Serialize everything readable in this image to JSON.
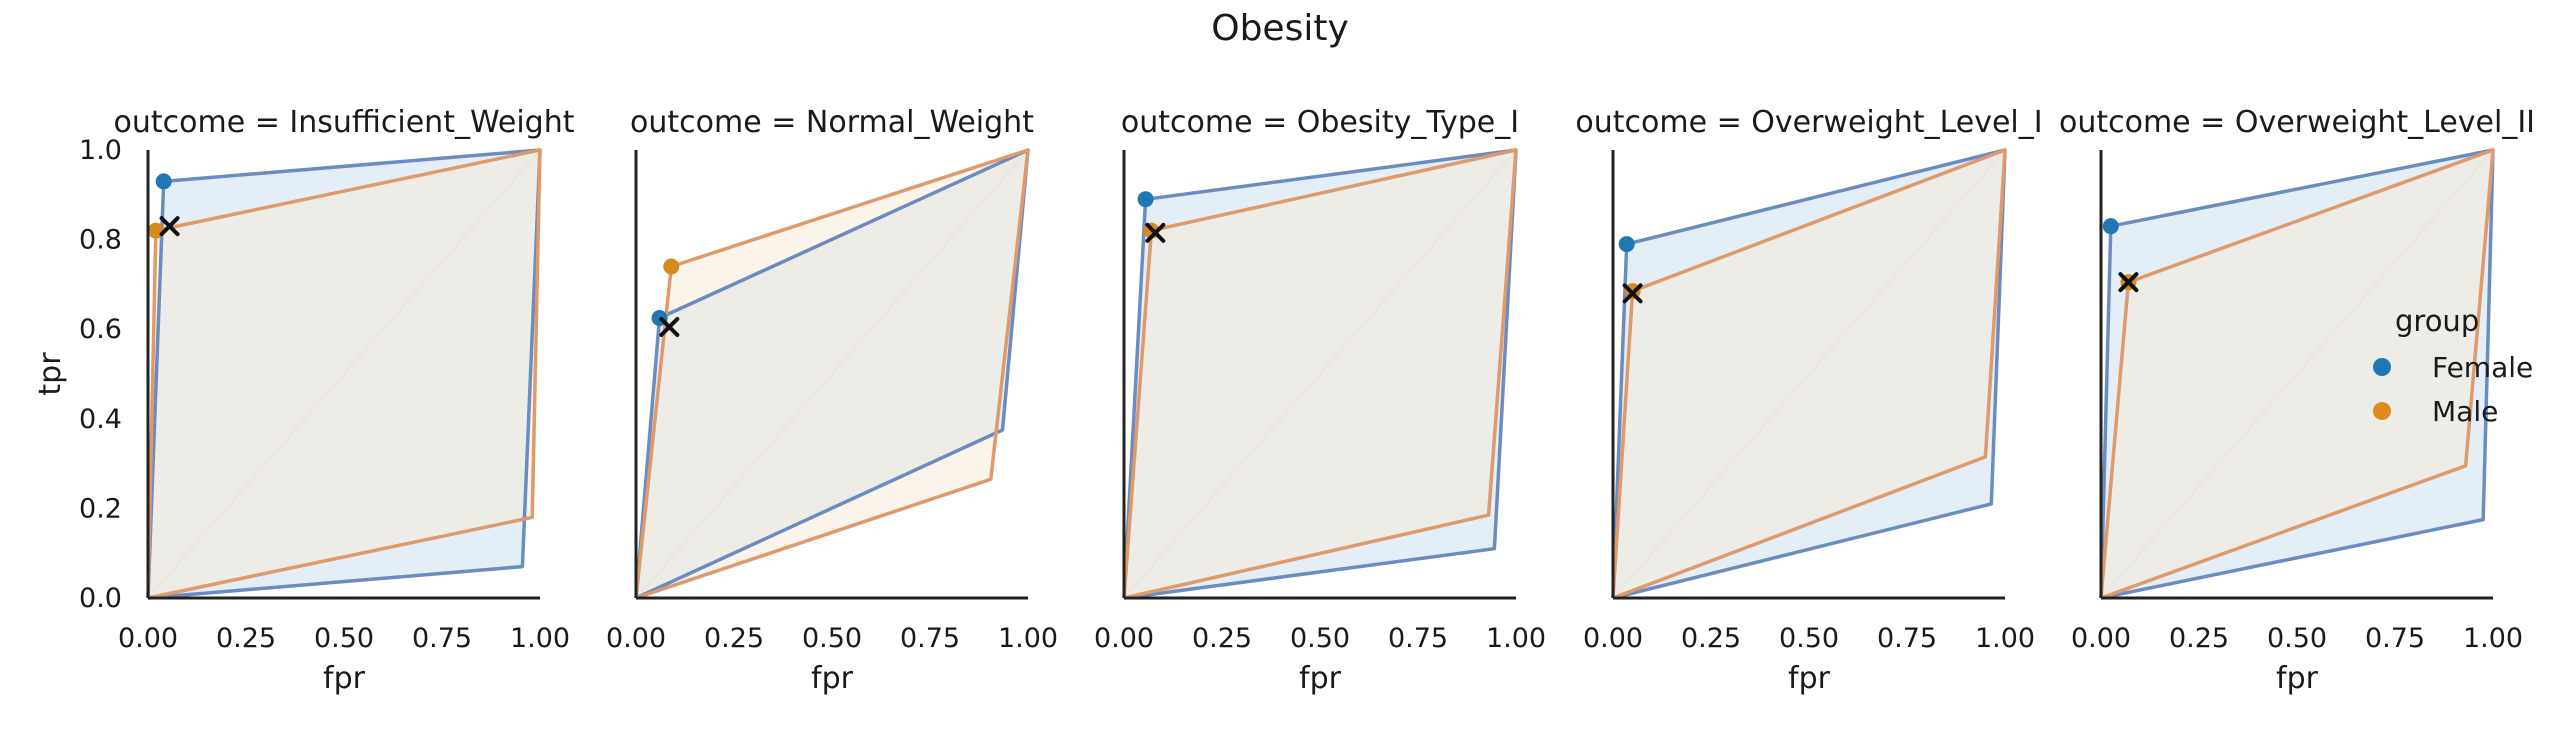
{
  "chart_data": {
    "type": "line",
    "title": "Obesity",
    "xlabel": "fpr",
    "ylabel": "tpr",
    "xlim": [
      0,
      1
    ],
    "ylim": [
      0,
      1
    ],
    "xticks": [
      "0.00",
      "0.25",
      "0.50",
      "0.75",
      "1.00"
    ],
    "yticks": [
      "0.0",
      "0.2",
      "0.4",
      "0.6",
      "0.8",
      "1.0"
    ],
    "legend": {
      "title": "group",
      "placement": "center-right",
      "entries": [
        {
          "name": "Female",
          "color": "#1f77b4"
        },
        {
          "name": "Male",
          "color": "#e08a1e"
        }
      ]
    },
    "colors": {
      "Female_line": "#6b8cc0",
      "Female_fill": "#d9e8f3",
      "Male_line": "#df9a6c",
      "Male_fill": "#f7ebd9",
      "Female_point": "#1f77b4",
      "Male_point": "#d88a1f",
      "diagonal": "#d6d6d6",
      "marker": "#111111"
    },
    "panels": [
      {
        "title": "outcome = Insufficient_Weight",
        "hulls": {
          "Female": [
            [
              0,
              0
            ],
            [
              0.04,
              0.93
            ],
            [
              1,
              1
            ],
            [
              0.955,
              0.07
            ],
            [
              0,
              0
            ]
          ],
          "Male": [
            [
              0,
              0
            ],
            [
              0.02,
              0.82
            ],
            [
              1,
              1
            ],
            [
              0.98,
              0.18
            ],
            [
              0,
              0
            ]
          ]
        },
        "points": {
          "Female": [
            0.04,
            0.93
          ],
          "Male": [
            0.02,
            0.82
          ]
        },
        "x_marker": [
          0.055,
          0.83
        ]
      },
      {
        "title": "outcome = Normal_Weight",
        "hulls": {
          "Female": [
            [
              0,
              0
            ],
            [
              0.06,
              0.625
            ],
            [
              1,
              1
            ],
            [
              0.935,
              0.375
            ],
            [
              0,
              0
            ]
          ],
          "Male": [
            [
              0,
              0
            ],
            [
              0.09,
              0.74
            ],
            [
              1,
              1
            ],
            [
              0.905,
              0.265
            ],
            [
              0,
              0
            ]
          ]
        },
        "points": {
          "Female": [
            0.06,
            0.625
          ],
          "Male": [
            0.09,
            0.74
          ]
        },
        "x_marker": [
          0.085,
          0.605
        ]
      },
      {
        "title": "outcome = Obesity_Type_I",
        "hulls": {
          "Female": [
            [
              0,
              0
            ],
            [
              0.055,
              0.89
            ],
            [
              1,
              1
            ],
            [
              0.945,
              0.11
            ],
            [
              0,
              0
            ]
          ],
          "Male": [
            [
              0,
              0
            ],
            [
              0.07,
              0.82
            ],
            [
              1,
              1
            ],
            [
              0.93,
              0.185
            ],
            [
              0,
              0
            ]
          ]
        },
        "points": {
          "Female": [
            0.055,
            0.89
          ],
          "Male": [
            0.07,
            0.82
          ]
        },
        "x_marker": [
          0.08,
          0.815
        ]
      },
      {
        "title": "outcome = Overweight_Level_I",
        "hulls": {
          "Female": [
            [
              0,
              0
            ],
            [
              0.035,
              0.79
            ],
            [
              1,
              1
            ],
            [
              0.965,
              0.21
            ],
            [
              0,
              0
            ]
          ],
          "Male": [
            [
              0,
              0
            ],
            [
              0.05,
              0.685
            ],
            [
              1,
              1
            ],
            [
              0.95,
              0.315
            ],
            [
              0,
              0
            ]
          ]
        },
        "points": {
          "Female": [
            0.035,
            0.79
          ],
          "Male": [
            0.05,
            0.685
          ]
        },
        "x_marker": [
          0.05,
          0.68
        ]
      },
      {
        "title": "outcome = Overweight_Level_II",
        "hulls": {
          "Female": [
            [
              0,
              0
            ],
            [
              0.025,
              0.83
            ],
            [
              1,
              1
            ],
            [
              0.975,
              0.175
            ],
            [
              0,
              0
            ]
          ],
          "Male": [
            [
              0,
              0
            ],
            [
              0.07,
              0.705
            ],
            [
              1,
              1
            ],
            [
              0.93,
              0.295
            ],
            [
              0,
              0
            ]
          ]
        },
        "points": {
          "Female": [
            0.025,
            0.83
          ],
          "Male": [
            0.07,
            0.705
          ]
        },
        "x_marker": [
          0.07,
          0.705
        ]
      }
    ]
  }
}
